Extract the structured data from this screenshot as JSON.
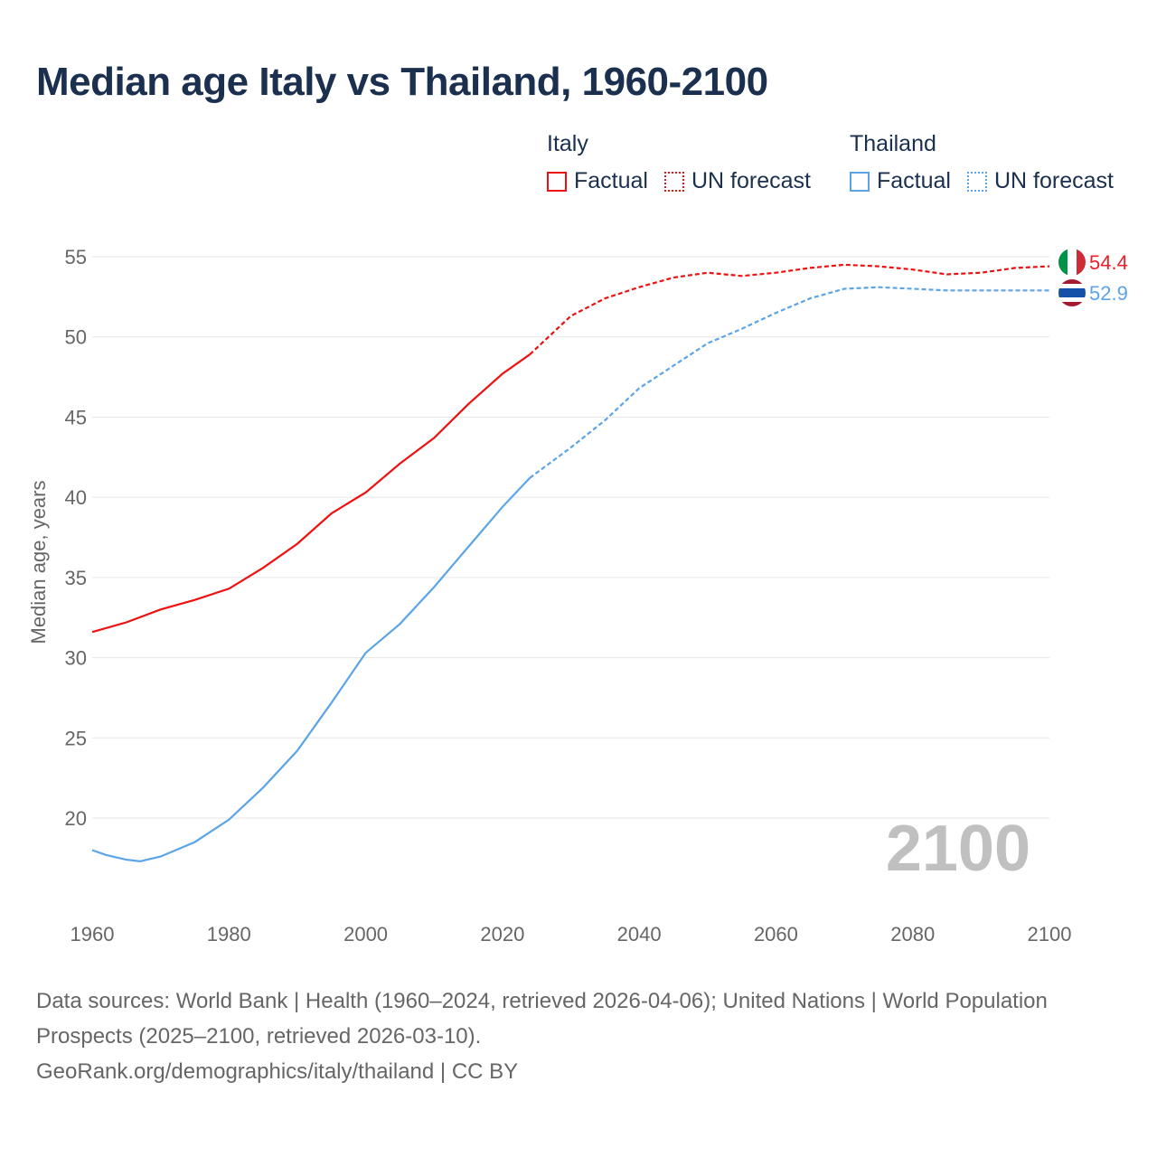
{
  "chart_data": {
    "type": "line",
    "title": "Median age Italy vs Thailand, 1960-2100",
    "xlabel": "",
    "ylabel": "Median age, years",
    "xlim": [
      1960,
      2100
    ],
    "ylim": [
      15,
      57
    ],
    "x_ticks": [
      1960,
      1980,
      2000,
      2020,
      2040,
      2060,
      2080,
      2100
    ],
    "y_ticks": [
      20,
      25,
      30,
      35,
      40,
      45,
      50,
      55
    ],
    "grid": true,
    "year_watermark": "2100",
    "factual_until": 2024,
    "legend": {
      "placement": "top-right",
      "groups": [
        {
          "name": "Italy",
          "factual": "Factual",
          "forecast": "UN forecast"
        },
        {
          "name": "Thailand",
          "factual": "Factual",
          "forecast": "UN forecast"
        }
      ]
    },
    "series": [
      {
        "name": "Italy",
        "color": "#ee1111",
        "end_label": "54.4",
        "x": [
          1960,
          1965,
          1970,
          1975,
          1980,
          1985,
          1990,
          1995,
          2000,
          2005,
          2010,
          2015,
          2020,
          2024,
          2030,
          2035,
          2040,
          2045,
          2050,
          2055,
          2060,
          2065,
          2070,
          2075,
          2080,
          2085,
          2090,
          2095,
          2100
        ],
        "values": [
          31.6,
          32.2,
          33.0,
          33.6,
          34.3,
          35.6,
          37.1,
          39.0,
          40.3,
          42.1,
          43.7,
          45.8,
          47.7,
          48.9,
          51.3,
          52.4,
          53.1,
          53.7,
          54.0,
          53.8,
          54.0,
          54.3,
          54.5,
          54.4,
          54.2,
          53.9,
          54.0,
          54.3,
          54.4
        ]
      },
      {
        "name": "Thailand",
        "color": "#5ba4e8",
        "end_label": "52.9",
        "x": [
          1960,
          1962,
          1965,
          1967,
          1970,
          1975,
          1980,
          1985,
          1990,
          1995,
          2000,
          2005,
          2010,
          2015,
          2020,
          2024,
          2030,
          2035,
          2040,
          2045,
          2050,
          2055,
          2060,
          2065,
          2070,
          2075,
          2080,
          2085,
          2090,
          2095,
          2100
        ],
        "values": [
          18.0,
          17.7,
          17.4,
          17.3,
          17.6,
          18.5,
          19.9,
          21.9,
          24.2,
          27.2,
          30.3,
          32.1,
          34.4,
          36.9,
          39.4,
          41.2,
          43.1,
          44.8,
          46.8,
          48.2,
          49.6,
          50.5,
          51.5,
          52.4,
          53.0,
          53.1,
          53.0,
          52.9,
          52.9,
          52.9,
          52.9
        ]
      }
    ]
  },
  "footer": {
    "line1": "Data sources: World Bank | Health (1960–2024, retrieved 2026-04-06); United Nations | World Population Prospects (2025–2100, retrieved 2026-03-10).",
    "line2": "GeoRank.org/demographics/italy/thailand | CC BY"
  }
}
